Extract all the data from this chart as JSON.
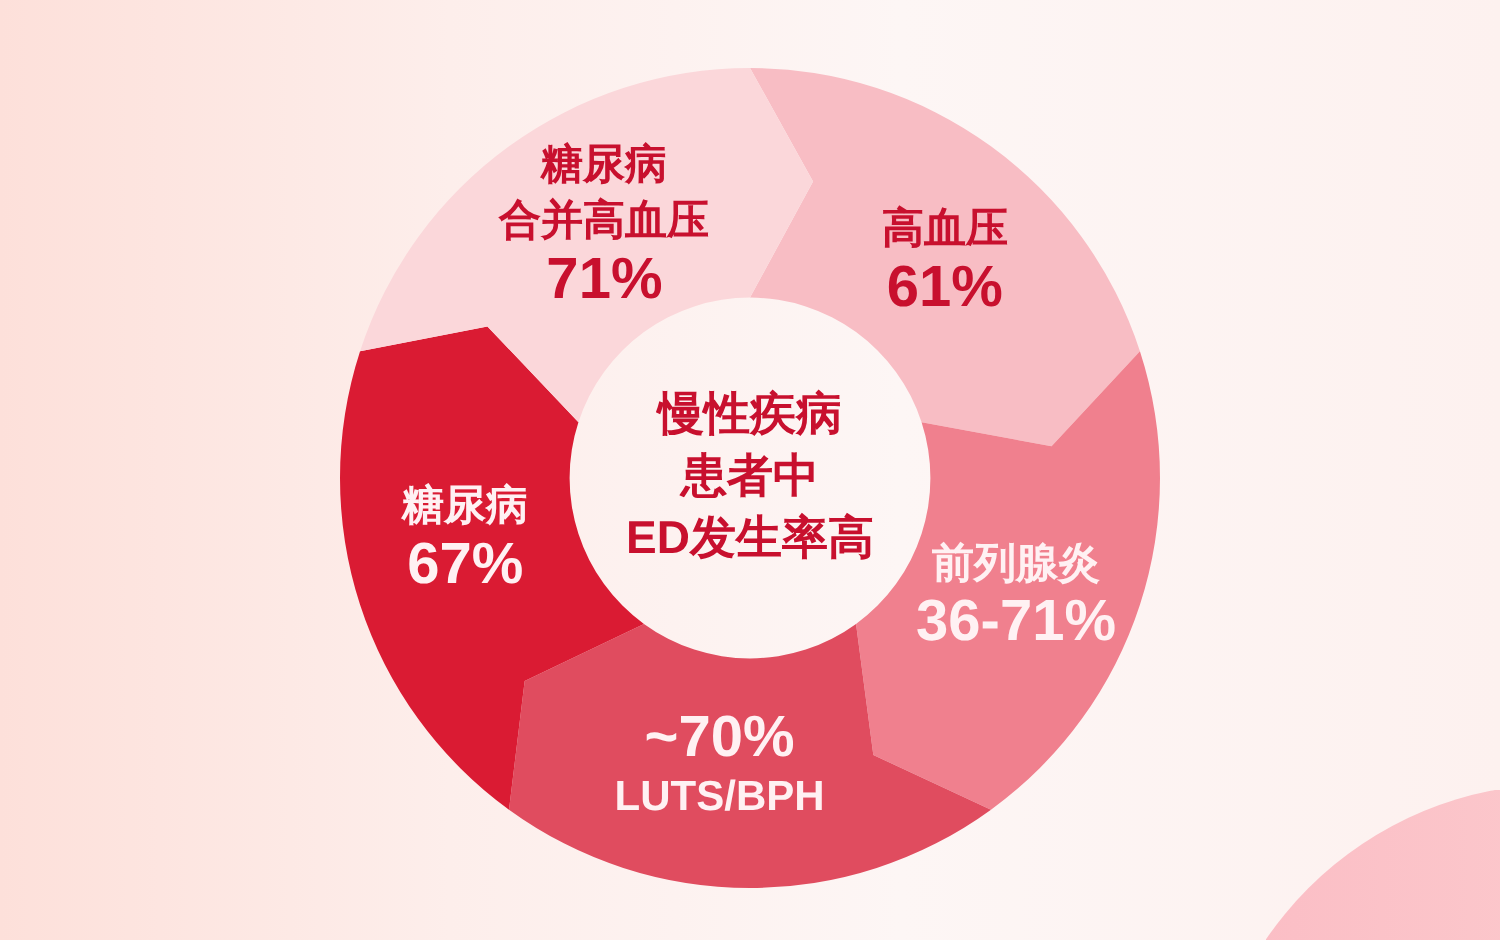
{
  "chart_data": {
    "type": "other",
    "title": "慢性疾病患者中",
    "subtitle": "ED发生率高",
    "categories": [
      "高血压",
      "前列腺炎",
      "LUTS/BPH",
      "糖尿病",
      "糖尿病合并高血压"
    ],
    "values": [
      61,
      null,
      70,
      67,
      71
    ],
    "value_labels": [
      "61%",
      "36-71%",
      "~70%",
      "67%",
      "71%"
    ],
    "colors": [
      "#f8bdc4",
      "#f0808e",
      "#e04c5f",
      "#da1b33",
      "#fbd7da"
    ]
  }
}
